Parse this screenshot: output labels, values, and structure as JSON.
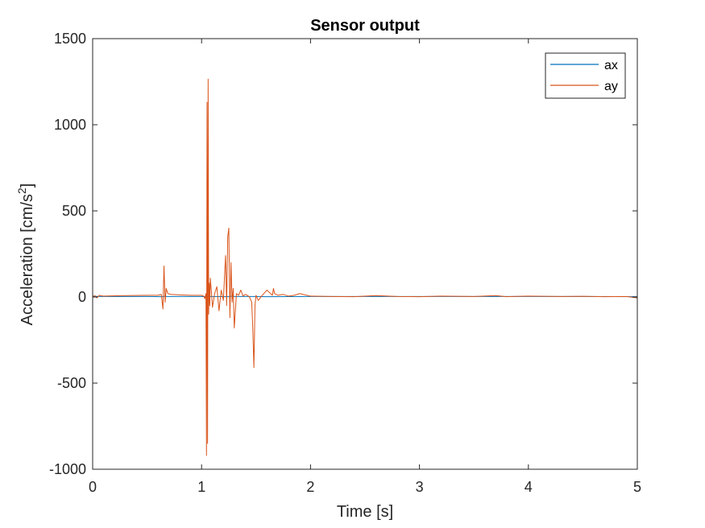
{
  "chart_data": {
    "type": "line",
    "title": "Sensor output",
    "xlabel": "Time [s]",
    "ylabel": {
      "text": "Acceleration [cm/s",
      "sup": "2",
      "close": "]"
    },
    "xlim": [
      0,
      5
    ],
    "ylim": [
      -1000,
      1500
    ],
    "x_ticks": [
      0,
      1,
      2,
      3,
      4,
      5
    ],
    "x_tick_labels": [
      "0",
      "1",
      "2",
      "3",
      "4",
      "5"
    ],
    "y_ticks": [
      -1000,
      -500,
      0,
      500,
      1000,
      1500
    ],
    "y_tick_labels": [
      "-1000",
      "-500",
      "0",
      "500",
      "1000",
      "1500"
    ],
    "grid": false,
    "legend_position": "top-right",
    "series": [
      {
        "name": "ax",
        "color": "#0072BD",
        "x": [
          0,
          0.05,
          0.5,
          0.65,
          0.66,
          0.67,
          1.0,
          1.05,
          1.06,
          1.07,
          1.1,
          1.25,
          1.28,
          1.3,
          1.5,
          1.6,
          2.0,
          2.5,
          3.0,
          3.5,
          4.0,
          4.5,
          5.0
        ],
        "y": [
          5,
          3,
          3,
          2,
          5,
          3,
          3,
          1,
          6,
          3,
          3,
          2,
          5,
          3,
          3,
          2,
          3,
          3,
          3,
          3,
          3,
          3,
          2
        ]
      },
      {
        "name": "ay",
        "color": "#D95319",
        "x": [
          0,
          0.02,
          0.04,
          0.06,
          0.1,
          0.3,
          0.5,
          0.6,
          0.63,
          0.645,
          0.655,
          0.665,
          0.675,
          0.69,
          0.72,
          0.8,
          0.9,
          1.0,
          1.02,
          1.03,
          1.04,
          1.045,
          1.05,
          1.055,
          1.06,
          1.065,
          1.07,
          1.075,
          1.08,
          1.09,
          1.1,
          1.12,
          1.14,
          1.16,
          1.18,
          1.2,
          1.22,
          1.23,
          1.24,
          1.25,
          1.26,
          1.27,
          1.28,
          1.29,
          1.3,
          1.32,
          1.34,
          1.36,
          1.38,
          1.4,
          1.42,
          1.44,
          1.46,
          1.47,
          1.48,
          1.485,
          1.49,
          1.5,
          1.52,
          1.55,
          1.6,
          1.65,
          1.66,
          1.67,
          1.7,
          1.75,
          1.8,
          1.85,
          1.9,
          2.0,
          2.2,
          2.4,
          2.6,
          2.8,
          3.0,
          3.2,
          3.5,
          3.7,
          3.8,
          4.0,
          4.3,
          4.5,
          4.7,
          4.9,
          5.0
        ],
        "y": [
          0,
          8,
          -5,
          10,
          5,
          8,
          10,
          10,
          15,
          -70,
          180,
          -30,
          50,
          20,
          15,
          12,
          10,
          10,
          5,
          -10,
          20,
          -920,
          1130,
          -850,
          1265,
          -100,
          80,
          -50,
          110,
          30,
          -60,
          20,
          60,
          -80,
          40,
          -20,
          240,
          -50,
          350,
          400,
          -120,
          200,
          -30,
          50,
          -180,
          20,
          10,
          40,
          5,
          15,
          10,
          0,
          -30,
          -180,
          -410,
          -250,
          -50,
          10,
          -20,
          5,
          40,
          10,
          50,
          20,
          10,
          15,
          5,
          10,
          20,
          5,
          3,
          2,
          8,
          3,
          2,
          5,
          3,
          8,
          2,
          5,
          3,
          4,
          2,
          3,
          -5
        ]
      }
    ]
  }
}
